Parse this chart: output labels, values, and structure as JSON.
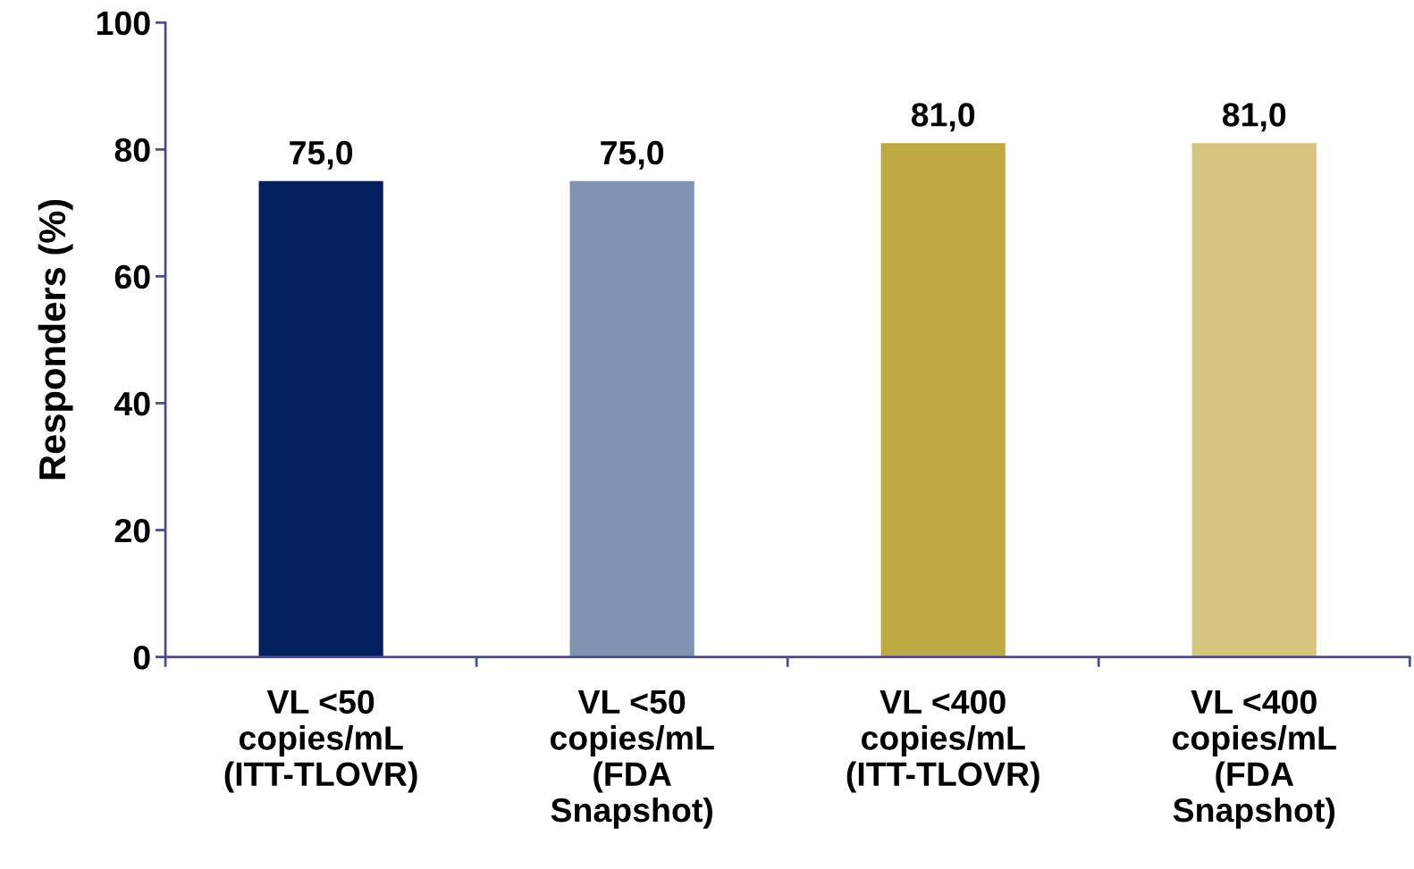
{
  "chart_data": {
    "type": "bar",
    "ylabel": "Responders (%)",
    "categories": [
      "VL <50\ncopies/mL\n(ITT-TLOVR)",
      "VL <50\ncopies/mL\n(FDA\nSnapshot)",
      "VL <400\ncopies/mL\n(ITT-TLOVR)",
      "VL <400\ncopies/mL\n(FDA\nSnapshot)"
    ],
    "values": [
      75.0,
      75.0,
      81.0,
      81.0
    ],
    "colors": [
      "#03215e",
      "#8093b3",
      "#bea942",
      "#d6c57e"
    ],
    "value_labels": [
      "75,0",
      "75,0",
      "81,0",
      "81,0"
    ],
    "ylim": [
      0,
      100
    ],
    "yticks": [
      0,
      20,
      40,
      60,
      80,
      100
    ],
    "grid": false
  }
}
